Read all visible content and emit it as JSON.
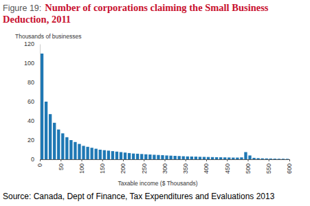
{
  "chart_data": {
    "type": "histogram",
    "figure_label": "Figure 19:",
    "title": "Number of corporations claiming the Small Business Deduction, 2011",
    "y_label": "Thousands of businesses",
    "x_label": "Taxable income ($ Thousands)",
    "source": "Source: Canada, Dept of Finance, Tax Expenditures and Evaluations 2013",
    "bins": [
      0,
      10,
      20,
      30,
      40,
      50,
      60,
      70,
      80,
      90,
      100,
      110,
      120,
      130,
      140,
      150,
      160,
      170,
      180,
      190,
      200,
      210,
      220,
      230,
      240,
      250,
      260,
      270,
      280,
      290,
      300,
      310,
      320,
      330,
      340,
      350,
      360,
      370,
      380,
      390,
      400,
      410,
      420,
      430,
      440,
      450,
      460,
      470,
      480,
      490,
      500,
      510,
      520,
      530,
      540,
      550,
      560,
      570,
      580,
      590,
      600
    ],
    "values": [
      110,
      60,
      47,
      38,
      31,
      27,
      23,
      20,
      18,
      16,
      14,
      13,
      12,
      11,
      10,
      9.5,
      9,
      8.5,
      8,
      7.5,
      7,
      6.5,
      6,
      5.8,
      5.5,
      5.2,
      5,
      4.7,
      4.5,
      4.3,
      4,
      3.8,
      3.6,
      3.4,
      3.2,
      3,
      2.9,
      2.8,
      2.6,
      2.5,
      2.4,
      2.3,
      2.2,
      2.1,
      2,
      1.9,
      1.8,
      1.8,
      2,
      7.5,
      4,
      1.5,
      1.2,
      1,
      0.9,
      0.8,
      0.7,
      0.6,
      0.6,
      0.5
    ],
    "color": "#1f78b4",
    "xlim": [
      0,
      600
    ],
    "xticks": [
      0,
      50,
      100,
      150,
      200,
      250,
      300,
      350,
      400,
      450,
      500,
      550,
      600
    ],
    "ylim": [
      0,
      120
    ],
    "yticks": [
      0,
      20,
      40,
      60,
      80,
      100,
      120
    ],
    "grid": false
  }
}
